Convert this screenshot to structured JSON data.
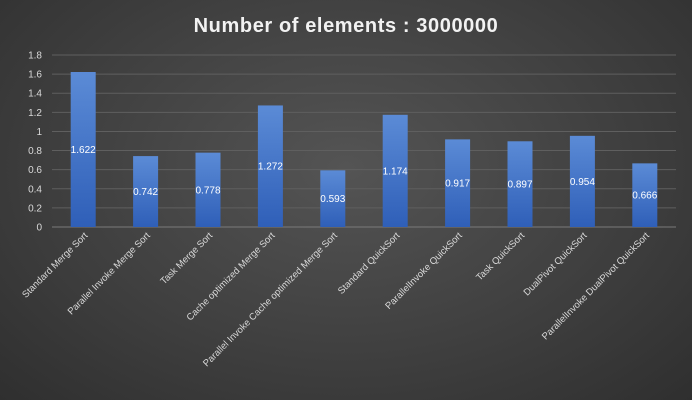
{
  "chart_data": {
    "type": "bar",
    "title": "Number of elements : 3000000",
    "xlabel": "",
    "ylabel": "",
    "ylim": [
      0,
      1.8
    ],
    "yticks": [
      "0",
      "0.2",
      "0.4",
      "0.6",
      "0.8",
      "1",
      "1.2",
      "1.4",
      "1.6",
      "1.8"
    ],
    "grid": true,
    "legend": "none",
    "categories": [
      "Standard Merge Sort",
      "Parallel Invoke Merge Sort",
      "Task  Merge Sort",
      "Cache optimized  Merge Sort",
      "Parallel Invoke Cache optimized Merge Sort",
      "Standard QuickSort",
      "ParallelInvoke QuickSort",
      "Task QuickSort",
      "DualPivot QuickSort",
      "ParallelInvoke DualPivot QuickSort"
    ],
    "values": [
      1.622,
      0.742,
      0.778,
      1.272,
      0.593,
      1.174,
      0.917,
      0.897,
      0.954,
      0.666
    ],
    "data_labels": [
      "1.622",
      "0.742",
      "0.778",
      "1.272",
      "0.593",
      "1.174",
      "0.917",
      "0.897",
      "0.954",
      "0.666"
    ],
    "colors": {
      "bar_top": "#5b8bd6",
      "bar_bottom": "#2f5fb8",
      "background": "#404040",
      "gridline": "#5f5f5f",
      "text": "#d9d9d9"
    }
  }
}
